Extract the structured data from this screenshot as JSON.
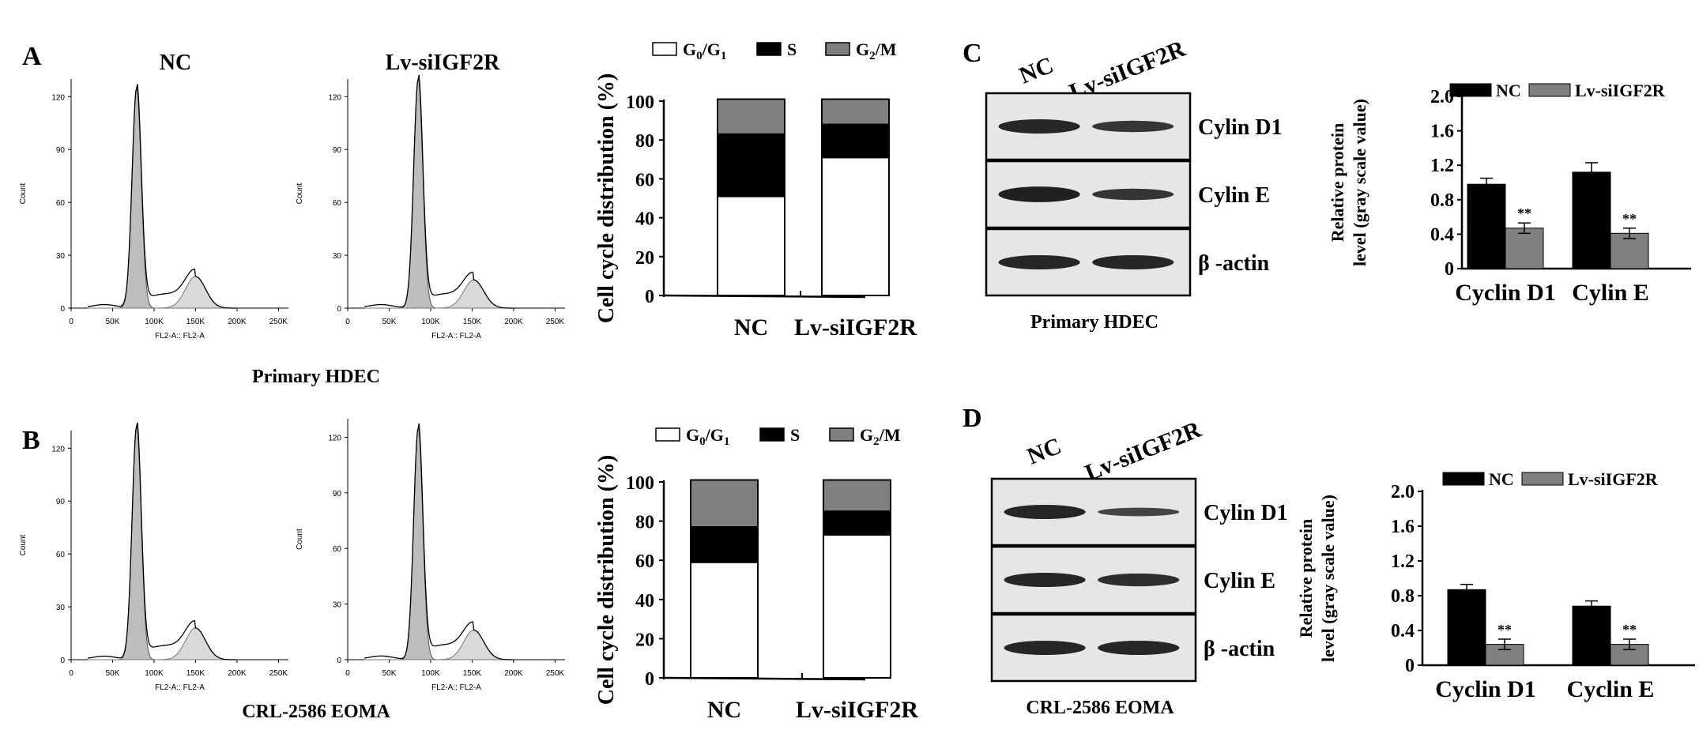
{
  "panels": {
    "A": "A",
    "B": "B",
    "C": "C",
    "D": "D"
  },
  "flow": {
    "top_labels": [
      "NC",
      "Lv-siIGF2R"
    ],
    "x_ticks": [
      "0",
      "50K",
      "100K",
      "150K",
      "200K",
      "250K"
    ],
    "y_ticks": [
      "0",
      "30",
      "60",
      "90",
      "120"
    ],
    "y_label": "Count",
    "x_label": "FL2-A:: FL2-A",
    "row_captions": [
      "Primary HDEC",
      "CRL-2586 EOMA"
    ]
  },
  "western": {
    "C": {
      "lanes": [
        "NC",
        "Lv-siIGF2R"
      ],
      "bands": [
        "Cylin D1",
        "Cylin E",
        "β -actin"
      ],
      "caption": "Primary HDEC"
    },
    "D": {
      "lanes": [
        "NC",
        "Lv-siIGF2R"
      ],
      "bands": [
        "Cylin D1",
        "Cylin E",
        "β -actin"
      ],
      "caption": "CRL-2586 EOMA"
    }
  },
  "chart_data": [
    {
      "type": "bar",
      "stacked": true,
      "categories": [
        "NC",
        "Lv-siIGF2R"
      ],
      "series": [
        {
          "name": "G0/G1",
          "values": [
            51,
            71
          ],
          "color": "#ffffff"
        },
        {
          "name": "S",
          "values": [
            32,
            17
          ],
          "color": "#000000"
        },
        {
          "name": "G2/M",
          "values": [
            18,
            13
          ],
          "color": "#808080"
        }
      ],
      "ylabel": "Cell cycle distribution (%)",
      "ylim": [
        0,
        100
      ],
      "yticks": [
        0,
        20,
        40,
        60,
        80,
        100
      ],
      "legend": "top"
    },
    {
      "type": "bar",
      "stacked": true,
      "categories": [
        "NC",
        "Lv-siIGF2R"
      ],
      "series": [
        {
          "name": "G0/G1",
          "values": [
            59,
            73
          ],
          "color": "#ffffff"
        },
        {
          "name": "S",
          "values": [
            18,
            12
          ],
          "color": "#000000"
        },
        {
          "name": "G2/M",
          "values": [
            25,
            17
          ],
          "color": "#808080"
        }
      ],
      "ylabel": "Cell cycle distribution (%)",
      "ylim": [
        0,
        100
      ],
      "yticks": [
        0,
        20,
        40,
        60,
        80,
        100
      ],
      "legend": "top"
    },
    {
      "type": "bar",
      "categories": [
        "Cyclin D1",
        "Cylin E"
      ],
      "series": [
        {
          "name": "NC",
          "values": [
            0.98,
            1.12
          ],
          "errors": [
            0.07,
            0.11
          ],
          "color": "#000000"
        },
        {
          "name": "Lv-siIGF2R",
          "values": [
            0.47,
            0.41
          ],
          "errors": [
            0.06,
            0.06
          ],
          "color": "#808080"
        }
      ],
      "annotations": [
        "**",
        "**"
      ],
      "ylabel": "Relative protein level (gray scale value)",
      "ylim": [
        0,
        2.0
      ],
      "yticks": [
        "0",
        "0.4",
        "0.8",
        "1.2",
        "1.6",
        "2.0"
      ],
      "legend": "top"
    },
    {
      "type": "bar",
      "categories": [
        "Cyclin D1",
        "Cyclin E"
      ],
      "series": [
        {
          "name": "NC",
          "values": [
            0.87,
            0.68
          ],
          "errors": [
            0.06,
            0.06
          ],
          "color": "#000000"
        },
        {
          "name": "Lv-siIGF2R",
          "values": [
            0.24,
            0.24
          ],
          "errors": [
            0.06,
            0.06
          ],
          "color": "#808080"
        }
      ],
      "annotations": [
        "**",
        "**"
      ],
      "ylabel": "Relative protein level (gray scale value)",
      "ylim": [
        0,
        2.0
      ],
      "yticks": [
        "0",
        "0.4",
        "0.8",
        "1.2",
        "1.6",
        "2.0"
      ],
      "legend": "top"
    }
  ]
}
